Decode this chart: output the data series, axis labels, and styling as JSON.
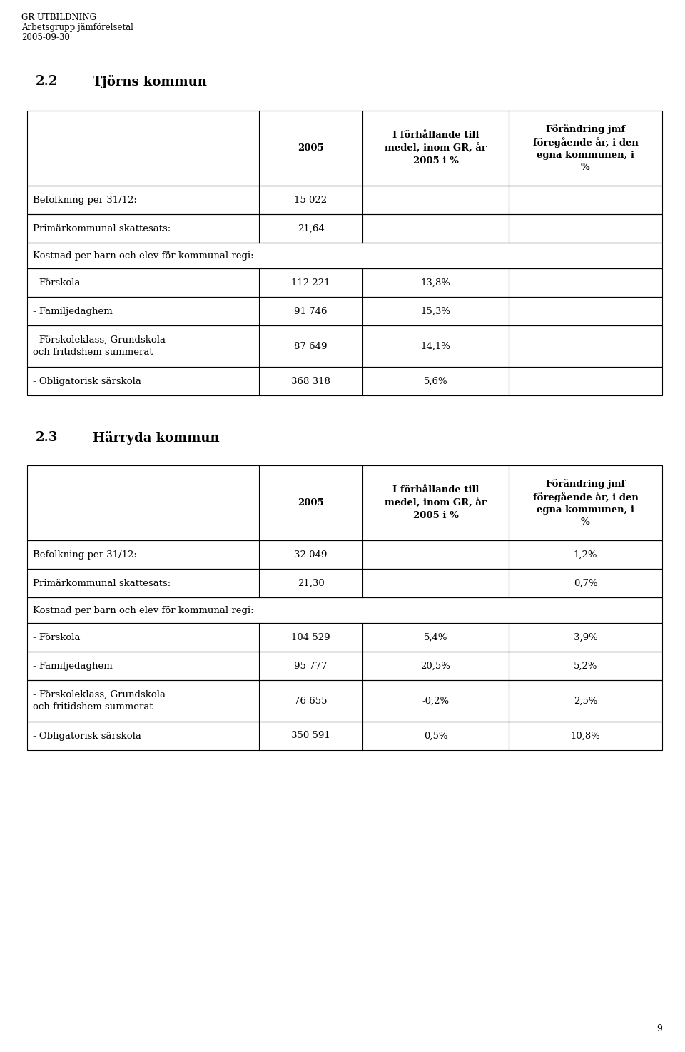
{
  "header_line1": "GR UTBILDNING",
  "header_line2": "Arbetsgrupp jämförelsetal",
  "header_line3": "2005-09-30",
  "section1_number": "2.2",
  "section1_name": "Tjörns kommun",
  "section2_number": "2.3",
  "section2_name": "Härryda kommun",
  "col_headers": [
    "2005",
    "I förhållande till\nmedel, inom GR, år\n2005 i %",
    "Förändring jmf\nföregående år, i den\negna kommunen, i\n%"
  ],
  "table1_rows": [
    [
      "Befolkning per 31/12:",
      "15 022",
      "",
      ""
    ],
    [
      "Primärkommunal skattesats:",
      "21,64",
      "",
      ""
    ],
    [
      "Kostnad per barn och elev för kommunal regi:",
      "",
      "",
      ""
    ],
    [
      "- Förskola",
      "112 221",
      "13,8%",
      ""
    ],
    [
      "- Familjedaghem",
      "91 746",
      "15,3%",
      ""
    ],
    [
      "- Förskoleklass, Grundskola\noch fritidshem summerat",
      "87 649",
      "14,1%",
      ""
    ],
    [
      "- Obligatorisk särskola",
      "368 318",
      "5,6%",
      ""
    ]
  ],
  "table2_rows": [
    [
      "Befolkning per 31/12:",
      "32 049",
      "",
      "1,2%"
    ],
    [
      "Primärkommunal skattesats:",
      "21,30",
      "",
      "0,7%"
    ],
    [
      "Kostnad per barn och elev för kommunal regi:",
      "",
      "",
      ""
    ],
    [
      "- Förskola",
      "104 529",
      "5,4%",
      "3,9%"
    ],
    [
      "- Familjedaghem",
      "95 777",
      "20,5%",
      "5,2%"
    ],
    [
      "- Förskoleklass, Grundskola\noch fritidshem summerat",
      "76 655",
      "-0,2%",
      "2,5%"
    ],
    [
      "- Obligatorisk särskola",
      "350 591",
      "0,5%",
      "10,8%"
    ]
  ],
  "page_number": "9",
  "bg_color": "#ffffff",
  "text_color": "#000000",
  "font_size_header": 8.5,
  "font_size_body": 9.5,
  "font_size_col_header": 9.5,
  "font_size_section": 13
}
